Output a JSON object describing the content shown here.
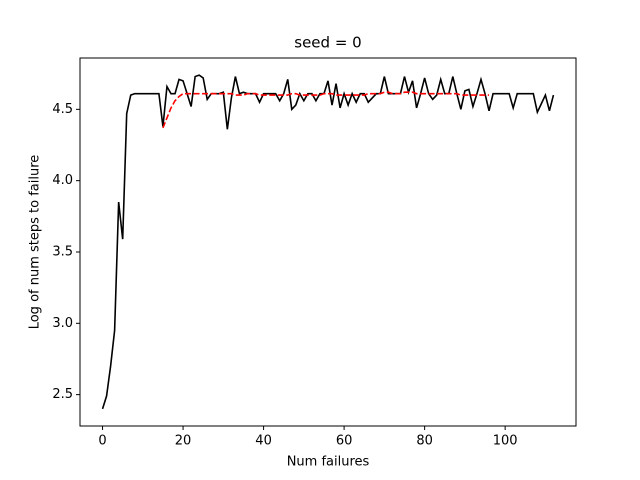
{
  "chart_data": {
    "type": "line",
    "title": "seed = 0",
    "xlabel": "Num failures",
    "ylabel": "Log of num steps to failure",
    "x": [
      0,
      1,
      2,
      3,
      4,
      5,
      6,
      7,
      8,
      9,
      10,
      11,
      12,
      13,
      14,
      15,
      16,
      17,
      18,
      19,
      20,
      21,
      22,
      23,
      24,
      25,
      26,
      27,
      28,
      29,
      30,
      31,
      32,
      33,
      34,
      35,
      36,
      37,
      38,
      39,
      40,
      41,
      42,
      43,
      44,
      45,
      46,
      47,
      48,
      49,
      50,
      51,
      52,
      53,
      54,
      55,
      56,
      57,
      58,
      59,
      60,
      61,
      62,
      63,
      64,
      65,
      66,
      67,
      68,
      69,
      70,
      71,
      72,
      73,
      74,
      75,
      76,
      77,
      78,
      79,
      80,
      81,
      82,
      83,
      84,
      85,
      86,
      87,
      88,
      89,
      90,
      91,
      92,
      93,
      94,
      95,
      96,
      97,
      98,
      99,
      100,
      101,
      102,
      103,
      104,
      105,
      106,
      107,
      108,
      109,
      110,
      111,
      112
    ],
    "series": [
      {
        "color": "#000000",
        "dash": false,
        "values": [
          2.4,
          2.49,
          2.7,
          2.95,
          3.85,
          3.59,
          4.47,
          4.6,
          4.61,
          4.61,
          4.61,
          4.61,
          4.61,
          4.61,
          4.61,
          4.38,
          4.66,
          4.61,
          4.61,
          4.71,
          4.7,
          4.61,
          4.52,
          4.73,
          4.74,
          4.72,
          4.57,
          4.61,
          4.61,
          4.61,
          4.62,
          4.36,
          4.58,
          4.73,
          4.61,
          4.62,
          4.61,
          4.61,
          4.61,
          4.55,
          4.61,
          4.61,
          4.61,
          4.61,
          4.56,
          4.61,
          4.71,
          4.5,
          4.53,
          4.61,
          4.56,
          4.61,
          4.61,
          4.56,
          4.61,
          4.61,
          4.7,
          4.53,
          4.68,
          4.51,
          4.61,
          4.53,
          4.61,
          4.55,
          4.61,
          4.61,
          4.55,
          4.58,
          4.61,
          4.61,
          4.73,
          4.61,
          4.61,
          4.61,
          4.61,
          4.73,
          4.62,
          4.7,
          4.51,
          4.61,
          4.72,
          4.61,
          4.57,
          4.6,
          4.71,
          4.61,
          4.61,
          4.73,
          4.61,
          4.5,
          4.63,
          4.64,
          4.52,
          4.61,
          4.71,
          4.61,
          4.49,
          4.61,
          4.61,
          4.61,
          4.61,
          4.61,
          4.51,
          4.61,
          4.61,
          4.61,
          4.61,
          4.61,
          4.48,
          4.54,
          4.6,
          4.49,
          4.6
        ]
      },
      {
        "color": "#ff0000",
        "dash": true,
        "values": [
          null,
          null,
          null,
          null,
          null,
          null,
          null,
          null,
          null,
          null,
          null,
          null,
          null,
          null,
          null,
          4.37,
          4.44,
          4.51,
          4.56,
          4.59,
          4.61,
          4.61,
          4.61,
          4.61,
          4.61,
          4.61,
          4.61,
          4.61,
          4.61,
          4.61,
          4.61,
          4.61,
          4.61,
          4.6,
          4.6,
          4.6,
          4.61,
          4.61,
          4.61,
          4.6,
          4.6,
          4.6,
          4.6,
          4.6,
          4.6,
          4.6,
          4.6,
          4.61,
          4.61,
          4.6,
          4.6,
          4.6,
          4.6,
          4.6,
          4.6,
          4.61,
          4.61,
          4.61,
          4.6,
          4.6,
          4.6,
          4.6,
          4.6,
          4.6,
          4.6,
          4.6,
          4.61,
          4.61,
          4.61,
          4.61,
          4.62,
          4.62,
          4.61,
          4.61,
          4.61,
          4.62,
          4.62,
          4.62,
          4.61,
          4.61,
          4.61,
          4.61,
          4.61,
          4.61,
          4.61,
          4.61,
          4.61,
          4.61,
          4.61,
          4.6,
          4.6,
          4.6,
          4.6,
          4.6,
          4.6,
          4.6,
          4.6,
          null,
          null,
          null,
          null,
          null,
          null,
          null,
          null,
          null,
          null,
          null,
          null,
          null,
          null,
          null,
          null
        ]
      }
    ],
    "xlim": [
      -5.6,
      117.6
    ],
    "ylim": [
      2.28,
      4.86
    ],
    "xticks": [
      0,
      20,
      40,
      60,
      80,
      100
    ],
    "yticks": [
      2.5,
      {
        "value": 3,
        "label": "3.0"
      },
      3.5,
      {
        "value": 4,
        "label": "4.0"
      },
      4.5
    ]
  }
}
